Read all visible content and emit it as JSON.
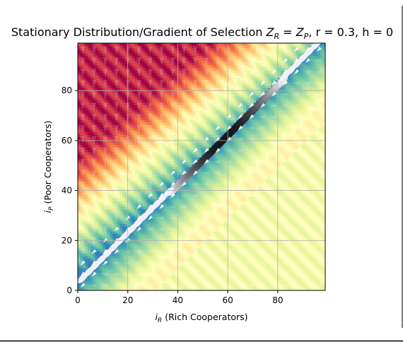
{
  "chart_data": {
    "type": "heatmap",
    "title": "Stationary Distribution/Gradient of Selection Z_R = Z_P, r = 0.3, h = 0",
    "title_parts": {
      "main": "Stationary Distribution/Gradient of Selection ",
      "zr_base": "Z",
      "zr_sub": "R",
      "eq": " = ",
      "zp_base": "Z",
      "zp_sub": "P",
      "rest": ", r = 0.3, h = 0"
    },
    "xlabel": "i_R (Rich Cooperators)",
    "xlabel_parts": {
      "base": "i",
      "sub": "R",
      "rest": " (Rich Cooperators)"
    },
    "ylabel": "i_P (Poor Cooperators)",
    "ylabel_parts": {
      "base": "i",
      "sub": "P",
      "rest": " (Poor Cooperators)"
    },
    "xlim": [
      0,
      99
    ],
    "ylim": [
      0,
      99
    ],
    "xticks": [
      0,
      20,
      40,
      60,
      80
    ],
    "yticks": [
      0,
      20,
      40,
      60,
      80
    ],
    "grid": true,
    "colormap": "Spectral (red = low density, yellow = mid, blue = high density), white-to-black = stationary distribution peak",
    "peak_center": [
      60,
      60
    ],
    "arrow_field": "gradient of selection arrows, pointing toward diagonal band i_P ≈ i_R"
  }
}
